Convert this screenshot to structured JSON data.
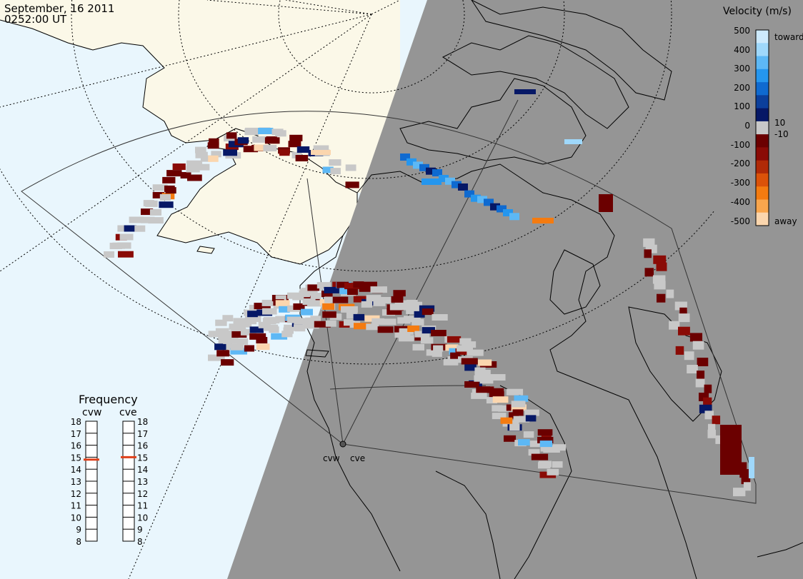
{
  "title": {
    "date": "September, 16 2011",
    "time": "0252:00 UT"
  },
  "colors": {
    "day_side": "#e9f6fd",
    "night_side": "#959595",
    "land_day": "#fbf8e8",
    "ground_scatter": "#c8c8c8",
    "coast": "#000000"
  },
  "velocity_scale": {
    "title": "Velocity (m/s)",
    "ticks": [
      "500",
      "400",
      "300",
      "200",
      "100",
      "10",
      "0",
      "-10",
      "-100",
      "-200",
      "-300",
      "-400",
      "-500"
    ],
    "toward_label": "toward",
    "away_label": "away",
    "colors": [
      "#cdeafd",
      "#9fd8fb",
      "#5db8f5",
      "#2596ee",
      "#0f6ad0",
      "#0b3f9b",
      "#061866",
      "#c8c8c8",
      "#6b0000",
      "#8a0b06",
      "#b02a07",
      "#db5209",
      "#f47b10",
      "#f9a64d",
      "#fbd6ae"
    ]
  },
  "frequency": {
    "title": "Frequency",
    "radars": [
      {
        "name": "cvw",
        "value_mhz": 14.8
      },
      {
        "name": "cve",
        "value_mhz": 15.0
      }
    ],
    "ticks": [
      "18",
      "17",
      "16",
      "15",
      "14",
      "13",
      "12",
      "11",
      "10",
      "9",
      "8"
    ],
    "marker_color": "#e0401a"
  },
  "radar_sites": [
    {
      "name": "cvw"
    },
    {
      "name": "cve"
    }
  ]
}
